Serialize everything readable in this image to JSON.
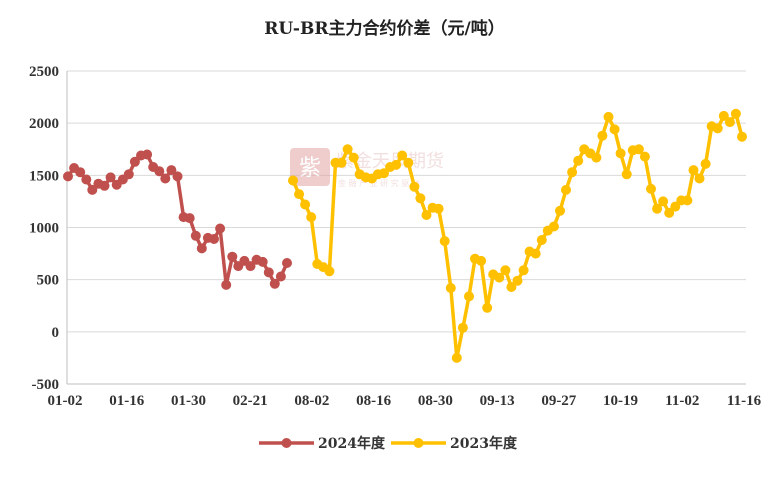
{
  "chart_data": {
    "type": "line",
    "title": "RU-BR主力合约价差（元/吨）",
    "xlabel": "",
    "ylabel": "",
    "ylim": [
      -500,
      2500
    ],
    "yticks": [
      -500,
      0,
      500,
      1000,
      1500,
      2000,
      2500
    ],
    "x_tick_labels": [
      "01-02",
      "01-16",
      "01-30",
      "02-21",
      "08-02",
      "08-16",
      "08-30",
      "09-13",
      "09-27",
      "10-19",
      "11-02",
      "11-16"
    ],
    "grid": true,
    "legend_position": "bottom",
    "series": [
      {
        "name": "2024年度",
        "color": "#c0504d",
        "values": [
          1490,
          1570,
          1530,
          1460,
          1360,
          1420,
          1400,
          1480,
          1410,
          1460,
          1510,
          1630,
          1690,
          1700,
          1580,
          1540,
          1470,
          1550,
          1490,
          1100,
          1090,
          920,
          800,
          900,
          890,
          990,
          450,
          720,
          630,
          680,
          630,
          690,
          670,
          570,
          460,
          530,
          660
        ]
      },
      {
        "name": "2023年度",
        "color": "#ffc000",
        "values": [
          1450,
          1320,
          1220,
          1100,
          650,
          620,
          580,
          1620,
          1620,
          1750,
          1670,
          1510,
          1480,
          1470,
          1510,
          1520,
          1580,
          1600,
          1690,
          1620,
          1390,
          1280,
          1120,
          1190,
          1180,
          870,
          420,
          -250,
          40,
          340,
          700,
          680,
          230,
          550,
          520,
          590,
          430,
          490,
          590,
          770,
          750,
          880,
          970,
          1010,
          1160,
          1360,
          1530,
          1640,
          1750,
          1710,
          1670,
          1880,
          2060,
          1940,
          1710,
          1510,
          1740,
          1750,
          1680,
          1370,
          1180,
          1250,
          1140,
          1200,
          1260,
          1260,
          1550,
          1470,
          1610,
          1970,
          1950,
          2070,
          2010,
          2090,
          1870
        ]
      }
    ]
  },
  "watermark": {
    "logo_glyph": "紫",
    "name": "紫金天风期货",
    "slogan": "金 融 产 业 研 究 驱 动"
  }
}
